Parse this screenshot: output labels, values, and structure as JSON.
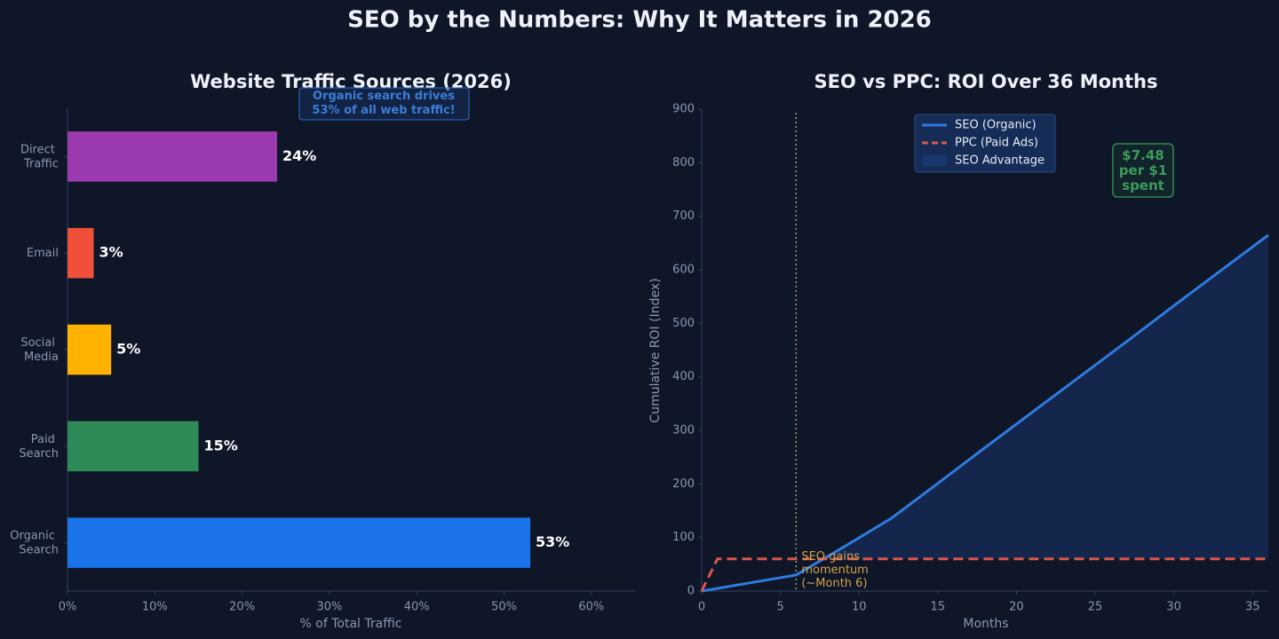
{
  "title": "SEO by the Numbers: Why It Matters in 2026",
  "chart_data": [
    {
      "type": "hbar",
      "title": "Website Traffic Sources (2026)",
      "categories": [
        "Direct Traffic",
        "Email",
        "Social Media",
        "Paid Search",
        "Organic Search"
      ],
      "values": [
        24,
        3,
        5,
        15,
        53
      ],
      "value_labels": [
        "24%",
        "3%",
        "5%",
        "15%",
        "53%"
      ],
      "colors": [
        "#9c3bb0",
        "#f0503a",
        "#ffb300",
        "#2e8b57",
        "#1a73e8"
      ],
      "xlim": [
        0,
        65
      ],
      "xticks": [
        {
          "value": 0,
          "label": "0%"
        },
        {
          "value": 10,
          "label": "10%"
        },
        {
          "value": 20,
          "label": "20%"
        },
        {
          "value": 30,
          "label": "30%"
        },
        {
          "value": 40,
          "label": "40%"
        },
        {
          "value": 50,
          "label": "50%"
        },
        {
          "value": 60,
          "label": "60%"
        }
      ],
      "xlabel": "% of Total Traffic",
      "annotation": [
        "Organic search drives",
        "53% of all web traffic!"
      ]
    },
    {
      "type": "line",
      "title": "SEO vs PPC: ROI Over 36 Months",
      "x": [
        0,
        1,
        3,
        6,
        9,
        12,
        15,
        18,
        21,
        24,
        27,
        30,
        33,
        36
      ],
      "series": [
        {
          "name": "SEO (Organic)",
          "color": "#2f7be0",
          "values": [
            0,
            5,
            15,
            30,
            82,
            135,
            201,
            268,
            334,
            400,
            466,
            533,
            599,
            665
          ]
        },
        {
          "name": "PPC (Paid Ads)",
          "color": "#d9574a",
          "dashed": true,
          "values": [
            0,
            60,
            60,
            60,
            60,
            60,
            60,
            60,
            60,
            60,
            60,
            60,
            60,
            60
          ]
        }
      ],
      "fill_label": "SEO Advantage",
      "fill_color": "#1c3a78",
      "xlim": [
        0,
        36
      ],
      "xticks": [
        0,
        5,
        10,
        15,
        20,
        25,
        30,
        35
      ],
      "ylim": [
        0,
        900
      ],
      "yticks": [
        0,
        100,
        200,
        300,
        400,
        500,
        600,
        700,
        800,
        900
      ],
      "xlabel": "Months",
      "ylabel": "Cumulative ROI (Index)",
      "legend": "upper center",
      "vline_x": 6,
      "annotation": [
        "SEO gains",
        "momentum",
        "(~Month 6)"
      ],
      "callout": [
        "$7.48",
        "per $1",
        "spent"
      ]
    }
  ]
}
